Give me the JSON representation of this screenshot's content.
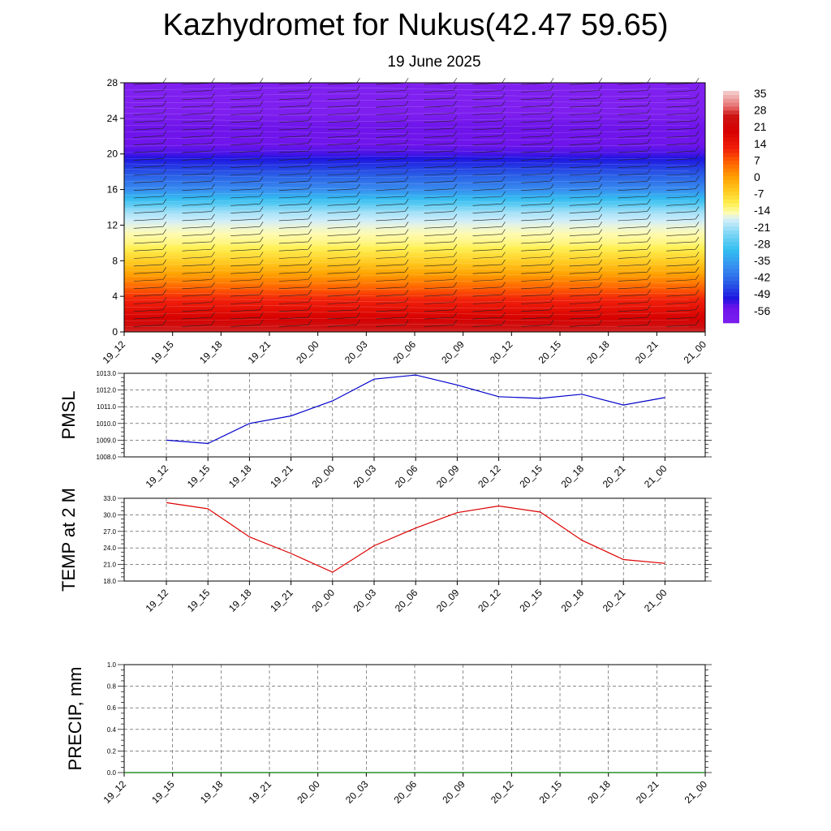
{
  "title": "Kazhydromet for Nukus(42.47 59.65)",
  "subtitle": "19 June 2025",
  "chart_data": [
    {
      "type": "heatmap",
      "name": "temperature-cross-section",
      "x_categories": [
        "19_12",
        "19_15",
        "19_18",
        "19_21",
        "20_00",
        "20_03",
        "20_06",
        "20_09",
        "20_12",
        "20_15",
        "20_18",
        "20_21",
        "21_00"
      ],
      "y_ticks": [
        0,
        4,
        8,
        12,
        16,
        20,
        24,
        28
      ],
      "ylim": [
        0,
        28
      ],
      "colorbar_labels": [
        "35",
        "28",
        "21",
        "14",
        "7",
        "0",
        "-7",
        "-14",
        "-21",
        "-28",
        "-35",
        "-42",
        "-49",
        "-56"
      ],
      "colorbar_range": [
        -63,
        42
      ],
      "temperature_profile": {
        "heights": [
          0,
          2,
          4,
          6,
          8,
          10,
          12,
          13.5,
          16,
          18,
          20,
          21.5,
          23,
          24.5,
          28
        ],
        "values": [
          32,
          22,
          14,
          5,
          -4,
          -11,
          -15,
          -20,
          -38,
          -46,
          -54,
          -57,
          -56,
          -64,
          -65
        ]
      },
      "wind_barbs": "present"
    },
    {
      "type": "line",
      "name": "pmsl",
      "ylabel": "PMSL",
      "x": [
        "19_12",
        "19_15",
        "19_18",
        "19_21",
        "20_00",
        "20_03",
        "20_06",
        "20_09",
        "20_12",
        "20_15",
        "20_18",
        "20_21",
        "21_00"
      ],
      "y_ticks": [
        "1008.0",
        "1009.0",
        "1010.0",
        "1011.0",
        "1012.0",
        "1013.0"
      ],
      "ylim": [
        1008,
        1013
      ],
      "series": [
        {
          "color": "#0000cc",
          "values": [
            1009.0,
            1008.8,
            1010.0,
            1010.45,
            1011.35,
            1012.65,
            1012.9,
            1012.3,
            1011.6,
            1011.5,
            1011.75,
            1011.1,
            1011.55
          ]
        }
      ],
      "grid": true
    },
    {
      "type": "line",
      "name": "temp-2m",
      "ylabel": "TEMP at 2 M",
      "x": [
        "19_12",
        "19_15",
        "19_18",
        "19_21",
        "20_00",
        "20_03",
        "20_06",
        "20_09",
        "20_12",
        "20_15",
        "20_18",
        "20_21",
        "21_00"
      ],
      "y_ticks": [
        "18.0",
        "21.0",
        "24.0",
        "27.0",
        "30.0",
        "33.0"
      ],
      "ylim": [
        18,
        33
      ],
      "series": [
        {
          "color": "#dd0000",
          "values": [
            32.2,
            31.1,
            26.0,
            23.0,
            19.6,
            24.4,
            27.6,
            30.4,
            31.6,
            30.5,
            25.4,
            21.9,
            21.2
          ]
        }
      ],
      "grid": true
    },
    {
      "type": "line",
      "name": "precip",
      "ylabel": "PRECIP, mm",
      "x": [
        "19_12",
        "19_15",
        "19_18",
        "19_21",
        "20_00",
        "20_03",
        "20_06",
        "20_09",
        "20_12",
        "20_15",
        "20_18",
        "20_21",
        "21_00"
      ],
      "y_ticks": [
        "0.0",
        "0.2",
        "0.4",
        "0.6",
        "0.8",
        "1.0"
      ],
      "ylim": [
        0,
        1
      ],
      "series": [
        {
          "color": "#007700",
          "values": [
            0,
            0,
            0,
            0,
            0,
            0,
            0,
            0,
            0,
            0,
            0,
            0,
            0
          ]
        }
      ],
      "grid": true
    }
  ]
}
